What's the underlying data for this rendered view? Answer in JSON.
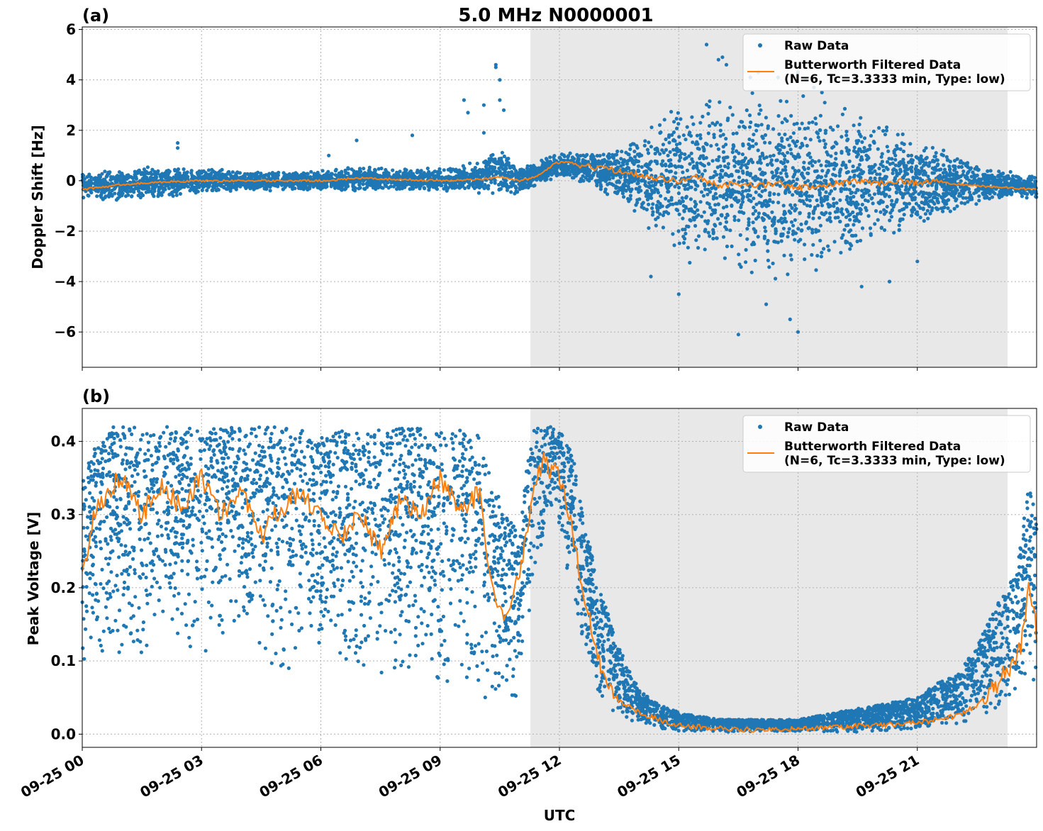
{
  "figure": {
    "title": "5.0 MHz N0000001",
    "xlabel": "UTC",
    "x_tick_labels": [
      "09-25 00",
      "09-25 03",
      "09-25 06",
      "09-25 09",
      "09-25 12",
      "09-25 15",
      "09-25 18",
      "09-25 21"
    ]
  },
  "legend": {
    "raw_label": "Raw Data",
    "filtered_label_line1": "Butterworth Filtered Data",
    "filtered_label_line2": "(N=6, Tc=3.3333 min, Type: low)",
    "placement": "upper right"
  },
  "colors": {
    "raw": "#1f77b4",
    "filtered": "#ff7f0e",
    "shade": "#e8e8e8",
    "grid": "#b0b0b0"
  },
  "chart_data": [
    {
      "panel": "(a)",
      "type": "scatter",
      "ylabel": "Doppler Shift [Hz]",
      "y_tick_labels": [
        "6",
        "4",
        "2",
        "0",
        "−2",
        "−4",
        "−6"
      ],
      "ylim": [
        -7.4,
        6.1
      ],
      "xlim_hours": [
        0,
        24
      ],
      "x_unit": "hours UTC on 09-25",
      "grid": true,
      "shaded_interval_hours": [
        11.27,
        23.27
      ],
      "raw_envelope": {
        "x_hours": [
          0,
          1,
          2,
          3,
          4,
          5,
          6,
          7,
          8,
          9,
          10,
          10.5,
          11,
          11.3,
          12,
          12.5,
          13,
          13.5,
          14,
          14.5,
          15,
          15.5,
          16,
          16.5,
          17,
          17.5,
          18,
          18.5,
          19,
          19.5,
          20,
          20.5,
          21,
          21.5,
          22,
          22.5,
          23,
          23.5,
          24
        ],
        "y_max": [
          0.3,
          0.5,
          0.6,
          0.5,
          0.4,
          0.4,
          0.4,
          0.6,
          0.5,
          0.5,
          0.8,
          1.3,
          0.6,
          0.7,
          1.2,
          1.2,
          1.1,
          1.3,
          1.8,
          2.6,
          3.2,
          3.5,
          3.5,
          3.6,
          3.6,
          3.6,
          3.5,
          3.3,
          3.0,
          2.8,
          2.5,
          2.1,
          1.8,
          1.5,
          1.0,
          0.8,
          0.5,
          0.3,
          0.3
        ],
        "y_min": [
          -0.8,
          -0.8,
          -0.7,
          -0.5,
          -0.4,
          -0.4,
          -0.4,
          -0.4,
          -0.4,
          -0.4,
          -0.5,
          -0.5,
          -0.6,
          -0.3,
          0.1,
          -0.1,
          -0.4,
          -0.8,
          -1.5,
          -2.3,
          -3.0,
          -3.5,
          -3.6,
          -3.8,
          -4.0,
          -4.0,
          -4.0,
          -3.8,
          -3.5,
          -3.0,
          -2.5,
          -2.2,
          -1.9,
          -1.6,
          -1.2,
          -1.0,
          -0.8,
          -0.7,
          -0.7
        ]
      },
      "raw_outliers": {
        "x_hours": [
          2.4,
          2.4,
          6.2,
          6.9,
          8.3,
          9.6,
          9.7,
          10.1,
          10.1,
          10.4,
          10.4,
          10.5,
          10.5,
          10.6,
          15.7,
          16.0,
          16.1,
          16.2,
          16.8,
          17.0,
          17.5,
          18.0,
          18.2,
          18.4,
          18.6,
          15.0,
          16.5,
          17.8,
          18.0,
          17.2,
          14.3,
          19.6,
          20.3,
          21.0
        ],
        "y": [
          1.5,
          1.3,
          1.0,
          1.6,
          1.8,
          3.2,
          2.7,
          3.0,
          1.9,
          4.6,
          4.5,
          4.0,
          3.2,
          2.8,
          5.4,
          4.8,
          4.9,
          4.6,
          4.1,
          4.3,
          4.1,
          4.3,
          4.0,
          3.7,
          3.5,
          -4.5,
          -6.1,
          -5.5,
          -6.0,
          -4.9,
          -3.8,
          -4.2,
          -4.0,
          -3.2
        ]
      },
      "filtered_series": {
        "name": "Butterworth Filtered Data",
        "x_hours": [
          0,
          1,
          2,
          3,
          4,
          5,
          6,
          7,
          8,
          9,
          10,
          10.5,
          11,
          11.3,
          11.6,
          11.9,
          12.2,
          12.5,
          13,
          13.5,
          14,
          14.5,
          15,
          15.5,
          16,
          16.5,
          17,
          17.5,
          18,
          18.5,
          19,
          19.5,
          20,
          20.5,
          21,
          21.5,
          22,
          22.5,
          23,
          23.5,
          24
        ],
        "y": [
          -0.35,
          -0.15,
          -0.05,
          0.0,
          0.0,
          0.0,
          0.0,
          0.1,
          0.05,
          0.0,
          0.05,
          0.15,
          0.0,
          0.1,
          0.35,
          0.7,
          0.75,
          0.6,
          0.5,
          0.4,
          0.25,
          0.1,
          0.0,
          0.15,
          -0.2,
          -0.1,
          -0.2,
          -0.1,
          -0.3,
          -0.2,
          -0.1,
          0.0,
          -0.1,
          0.0,
          -0.1,
          0.0,
          -0.15,
          -0.2,
          -0.25,
          -0.3,
          -0.35
        ]
      }
    },
    {
      "panel": "(b)",
      "type": "scatter",
      "ylabel": "Peak Voltage [V]",
      "y_tick_labels": [
        "0.4",
        "0.3",
        "0.2",
        "0.1",
        "0.0"
      ],
      "ylim": [
        -0.018,
        0.445
      ],
      "xlim_hours": [
        0,
        24
      ],
      "x_unit": "hours UTC on 09-25",
      "grid": true,
      "shaded_interval_hours": [
        11.27,
        23.27
      ],
      "raw_envelope": {
        "x_hours": [
          0,
          0.3,
          0.8,
          1.5,
          2,
          3,
          4,
          5,
          6,
          7,
          8,
          9,
          10,
          10.6,
          11.0,
          11.3,
          11.8,
          12.3,
          12.6,
          13,
          13.5,
          14,
          14.5,
          15,
          16,
          17,
          18,
          19,
          20,
          21,
          21.5,
          22,
          22.5,
          23,
          23.5,
          23.8,
          24
        ],
        "y_max": [
          0.35,
          0.4,
          0.42,
          0.42,
          0.42,
          0.42,
          0.42,
          0.42,
          0.41,
          0.42,
          0.42,
          0.42,
          0.41,
          0.3,
          0.28,
          0.42,
          0.42,
          0.4,
          0.3,
          0.2,
          0.12,
          0.06,
          0.04,
          0.03,
          0.02,
          0.02,
          0.02,
          0.03,
          0.04,
          0.05,
          0.07,
          0.08,
          0.12,
          0.18,
          0.22,
          0.34,
          0.3
        ],
        "y_min": [
          0.08,
          0.12,
          0.09,
          0.1,
          0.15,
          0.1,
          0.15,
          0.08,
          0.1,
          0.08,
          0.08,
          0.06,
          0.05,
          0.04,
          0.04,
          0.2,
          0.3,
          0.2,
          0.1,
          0.05,
          0.02,
          0.01,
          0.005,
          0.003,
          0.003,
          0.003,
          0.003,
          0.003,
          0.003,
          0.005,
          0.008,
          0.01,
          0.02,
          0.03,
          0.05,
          0.07,
          0.06
        ]
      },
      "filtered_series": {
        "name": "Butterworth Filtered Data",
        "x_hours": [
          0,
          0.3,
          0.6,
          1,
          1.5,
          2,
          2.5,
          3,
          3.5,
          4,
          4.5,
          5,
          5.5,
          6,
          6.5,
          7,
          7.5,
          8,
          8.5,
          9,
          9.5,
          10,
          10.3,
          10.6,
          10.9,
          11.1,
          11.3,
          11.6,
          12.0,
          12.3,
          12.6,
          12.9,
          13.2,
          13.5,
          14,
          14.5,
          15,
          16,
          17,
          18,
          19,
          20,
          21,
          21.5,
          22,
          22.5,
          23,
          23.3,
          23.6,
          23.8,
          24
        ],
        "y": [
          0.22,
          0.3,
          0.33,
          0.35,
          0.3,
          0.34,
          0.31,
          0.35,
          0.3,
          0.33,
          0.27,
          0.31,
          0.33,
          0.3,
          0.27,
          0.3,
          0.25,
          0.32,
          0.3,
          0.35,
          0.3,
          0.33,
          0.2,
          0.15,
          0.2,
          0.25,
          0.33,
          0.37,
          0.35,
          0.28,
          0.2,
          0.12,
          0.07,
          0.045,
          0.03,
          0.02,
          0.012,
          0.008,
          0.006,
          0.007,
          0.01,
          0.012,
          0.015,
          0.02,
          0.025,
          0.04,
          0.07,
          0.09,
          0.12,
          0.2,
          0.14
        ]
      }
    }
  ]
}
